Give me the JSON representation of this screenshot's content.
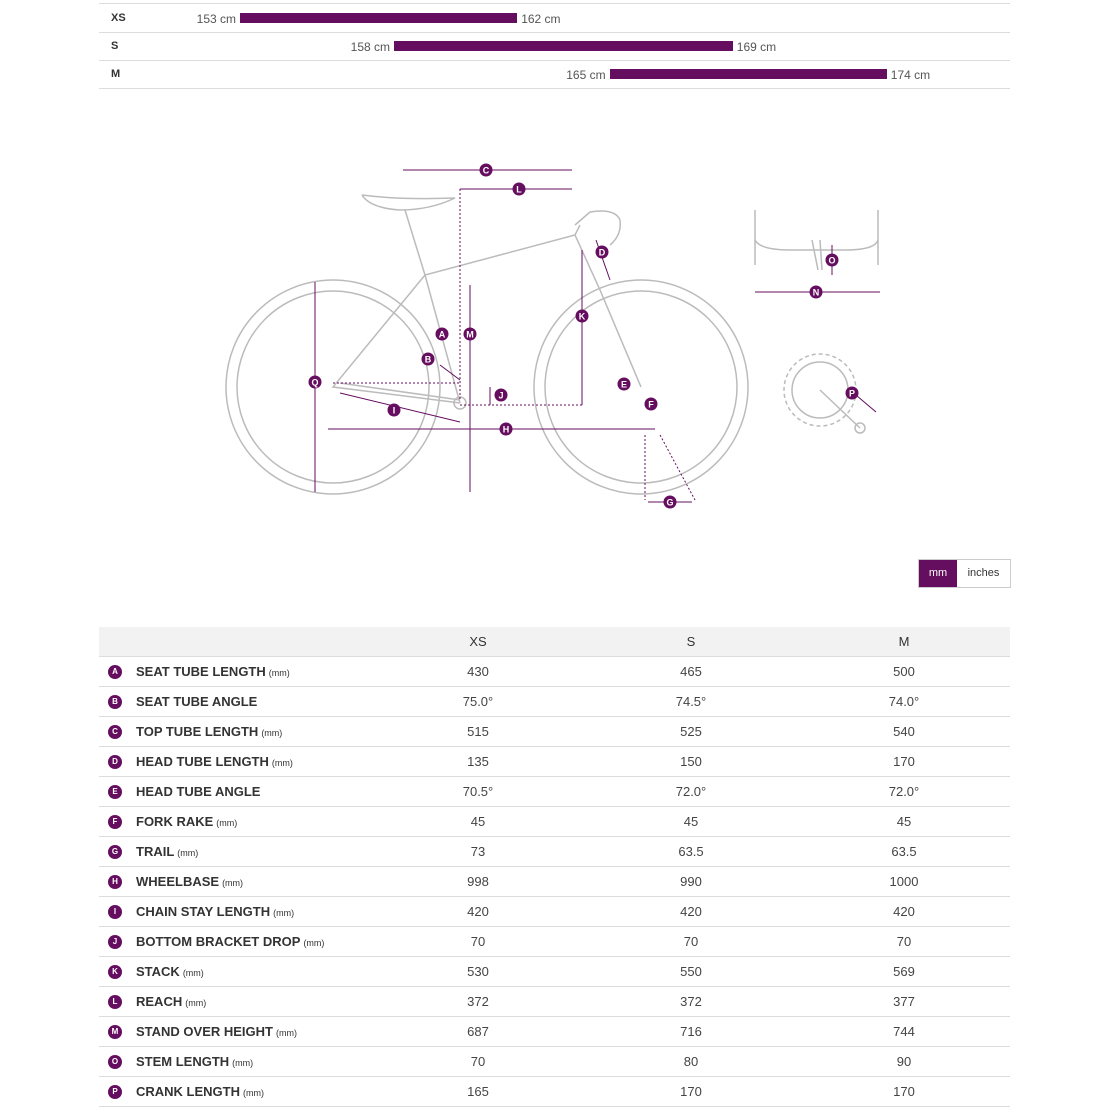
{
  "sizes": [
    {
      "size": "XS",
      "min": "153 cm",
      "max": "162 cm"
    },
    {
      "size": "S",
      "min": "158 cm",
      "max": "169 cm"
    },
    {
      "size": "M",
      "min": "165 cm",
      "max": "174 cm"
    }
  ],
  "diagram": {
    "labels": [
      "C",
      "L",
      "D",
      "A",
      "M",
      "K",
      "B",
      "Q",
      "J",
      "E",
      "F",
      "I",
      "H",
      "G",
      "O",
      "N",
      "P"
    ]
  },
  "units": [
    "mm",
    "inches"
  ],
  "table": {
    "columns": [
      "XS",
      "S",
      "M"
    ],
    "rows": [
      {
        "letter": "A",
        "name": "SEAT TUBE LENGTH",
        "unit": "(mm)",
        "values": [
          "430",
          "465",
          "500"
        ]
      },
      {
        "letter": "B",
        "name": "SEAT TUBE ANGLE",
        "values": [
          "75.0°",
          "74.5°",
          "74.0°"
        ]
      },
      {
        "letter": "C",
        "name": "TOP TUBE LENGTH",
        "unit": "(mm)",
        "values": [
          "515",
          "525",
          "540"
        ]
      },
      {
        "letter": "D",
        "name": "HEAD TUBE LENGTH",
        "unit": "(mm)",
        "values": [
          "135",
          "150",
          "170"
        ]
      },
      {
        "letter": "E",
        "name": "HEAD TUBE ANGLE",
        "values": [
          "70.5°",
          "72.0°",
          "72.0°"
        ]
      },
      {
        "letter": "F",
        "name": "FORK RAKE",
        "unit": "(mm)",
        "values": [
          "45",
          "45",
          "45"
        ]
      },
      {
        "letter": "G",
        "name": "TRAIL",
        "unit": "(mm)",
        "values": [
          "73",
          "63.5",
          "63.5"
        ]
      },
      {
        "letter": "H",
        "name": "WHEELBASE",
        "unit": "(mm)",
        "values": [
          "998",
          "990",
          "1000"
        ]
      },
      {
        "letter": "I",
        "name": "CHAIN STAY LENGTH",
        "unit": "(mm)",
        "values": [
          "420",
          "420",
          "420"
        ]
      },
      {
        "letter": "J",
        "name": "BOTTOM BRACKET DROP",
        "unit": "(mm)",
        "values": [
          "70",
          "70",
          "70"
        ]
      },
      {
        "letter": "K",
        "name": "STACK",
        "unit": "(mm)",
        "values": [
          "530",
          "550",
          "569"
        ]
      },
      {
        "letter": "L",
        "name": "REACH",
        "unit": "(mm)",
        "values": [
          "372",
          "372",
          "377"
        ]
      },
      {
        "letter": "M",
        "name": "STAND OVER HEIGHT",
        "unit": "(mm)",
        "values": [
          "687",
          "716",
          "744"
        ]
      },
      {
        "letter": "O",
        "name": "STEM LENGTH",
        "unit": "(mm)",
        "values": [
          "70",
          "80",
          "90"
        ]
      },
      {
        "letter": "P",
        "name": "CRANK LENGTH",
        "unit": "(mm)",
        "values": [
          "165",
          "170",
          "170"
        ]
      }
    ]
  }
}
